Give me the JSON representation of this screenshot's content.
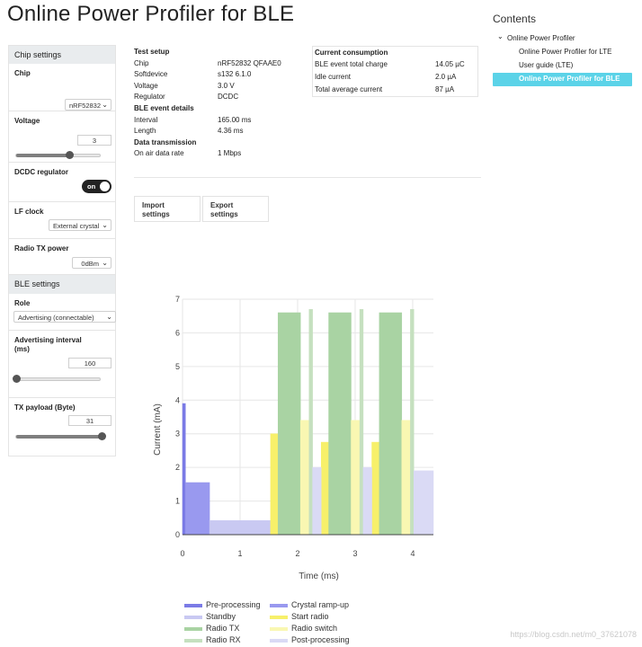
{
  "page_title": "Online Power Profiler for BLE",
  "sidebar": {
    "chip_settings_header": "Chip settings",
    "chip": {
      "label": "Chip",
      "value": "nRF52832"
    },
    "voltage": {
      "label": "Voltage",
      "value": "3",
      "slider_fraction": 0.62
    },
    "dcdc": {
      "label": "DCDC regulator",
      "state": "on"
    },
    "lf_clock": {
      "label": "LF clock",
      "value": "External crystal"
    },
    "radio_tx_power": {
      "label": "Radio TX power",
      "value": "0dBm"
    },
    "ble_settings_header": "BLE settings",
    "role": {
      "label": "Role",
      "value": "Advertising (connectable)"
    },
    "adv_interval": {
      "label": "Advertising interval (ms)",
      "value": "160",
      "slider_fraction": 0.0
    },
    "tx_payload": {
      "label": "TX payload (Byte)",
      "value": "31",
      "slider_fraction": 1.0
    }
  },
  "test_setup": {
    "header": "Test setup",
    "rows": [
      {
        "k": "Chip",
        "v": "nRF52832 QFAAE0"
      },
      {
        "k": "Softdevice",
        "v": "s132 6.1.0"
      },
      {
        "k": "Voltage",
        "v": "3.0 V"
      },
      {
        "k": "Regulator",
        "v": "DCDC"
      }
    ],
    "ble_header": "BLE event details",
    "ble_rows": [
      {
        "k": "Interval",
        "v": "165.00 ms"
      },
      {
        "k": "Length",
        "v": "4.36 ms"
      }
    ],
    "dt_header": "Data transmission",
    "dt_rows": [
      {
        "k": "On air data rate",
        "v": "1 Mbps"
      }
    ]
  },
  "current_consumption": {
    "header": "Current consumption",
    "rows": [
      {
        "k": "BLE event total charge",
        "v": "14.05 µC"
      },
      {
        "k": "Idle current",
        "v": "2.0 µA"
      },
      {
        "k": "Total average current",
        "v": "87 µA"
      }
    ]
  },
  "buttons": {
    "import": "Import settings",
    "export": "Export settings"
  },
  "contents": {
    "title": "Contents",
    "items": [
      {
        "label": "Online Power Profiler",
        "level": 0,
        "expanded": true
      },
      {
        "label": "Online Power Profiler for LTE",
        "level": 1
      },
      {
        "label": "User guide (LTE)",
        "level": 1
      },
      {
        "label": "Online Power Profiler for BLE",
        "level": 1,
        "active": true
      }
    ]
  },
  "chart_data": {
    "type": "bar",
    "xlabel": "Time (ms)",
    "ylabel": "Current (mA)",
    "xlim": [
      0,
      4.36
    ],
    "ylim": [
      0,
      7
    ],
    "xticks": [
      "0",
      "1",
      "2",
      "3",
      "4"
    ],
    "yticks": [
      "0",
      "1",
      "2",
      "3",
      "4",
      "5",
      "6",
      "7"
    ],
    "grid": true,
    "legend_position": "bottom",
    "series": [
      {
        "name": "Pre-processing",
        "color": "#7b7be6",
        "segments": [
          {
            "x0": 0.0,
            "x1": 0.05,
            "y": 3.9
          }
        ]
      },
      {
        "name": "Crystal ramp-up",
        "color": "#9999ef",
        "segments": [
          {
            "x0": 0.05,
            "x1": 0.47,
            "y": 1.55
          }
        ]
      },
      {
        "name": "Standby",
        "color": "#c9c9f2",
        "segments": [
          {
            "x0": 0.47,
            "x1": 1.53,
            "y": 0.42
          }
        ]
      },
      {
        "name": "Start radio",
        "color": "#f7f06a",
        "segments": [
          {
            "x0": 1.53,
            "x1": 1.66,
            "y": 3.0
          },
          {
            "x0": 2.41,
            "x1": 2.54,
            "y": 2.75
          },
          {
            "x0": 3.29,
            "x1": 3.42,
            "y": 2.75
          }
        ]
      },
      {
        "name": "Radio TX",
        "color": "#a9d3a3",
        "segments": [
          {
            "x0": 1.66,
            "x1": 2.05,
            "y": 6.6
          },
          {
            "x0": 2.54,
            "x1": 2.93,
            "y": 6.6
          },
          {
            "x0": 3.42,
            "x1": 3.81,
            "y": 6.6
          }
        ]
      },
      {
        "name": "Radio switch",
        "color": "#f9f7b2",
        "segments": [
          {
            "x0": 2.05,
            "x1": 2.2,
            "y": 3.4
          },
          {
            "x0": 2.93,
            "x1": 3.08,
            "y": 3.4
          },
          {
            "x0": 3.81,
            "x1": 3.96,
            "y": 3.4
          }
        ]
      },
      {
        "name": "Radio RX",
        "color": "#c5e0bf",
        "segments": [
          {
            "x0": 2.2,
            "x1": 2.26,
            "y": 6.7
          },
          {
            "x0": 3.08,
            "x1": 3.14,
            "y": 6.7
          },
          {
            "x0": 3.96,
            "x1": 4.02,
            "y": 6.7
          }
        ]
      },
      {
        "name": "Post-processing",
        "color": "#dadaf5",
        "segments": [
          {
            "x0": 2.26,
            "x1": 2.41,
            "y": 2.0
          },
          {
            "x0": 3.14,
            "x1": 3.29,
            "y": 2.0
          },
          {
            "x0": 4.02,
            "x1": 4.36,
            "y": 1.9
          }
        ]
      }
    ]
  },
  "watermark": "https://blog.csdn.net/m0_37621078"
}
